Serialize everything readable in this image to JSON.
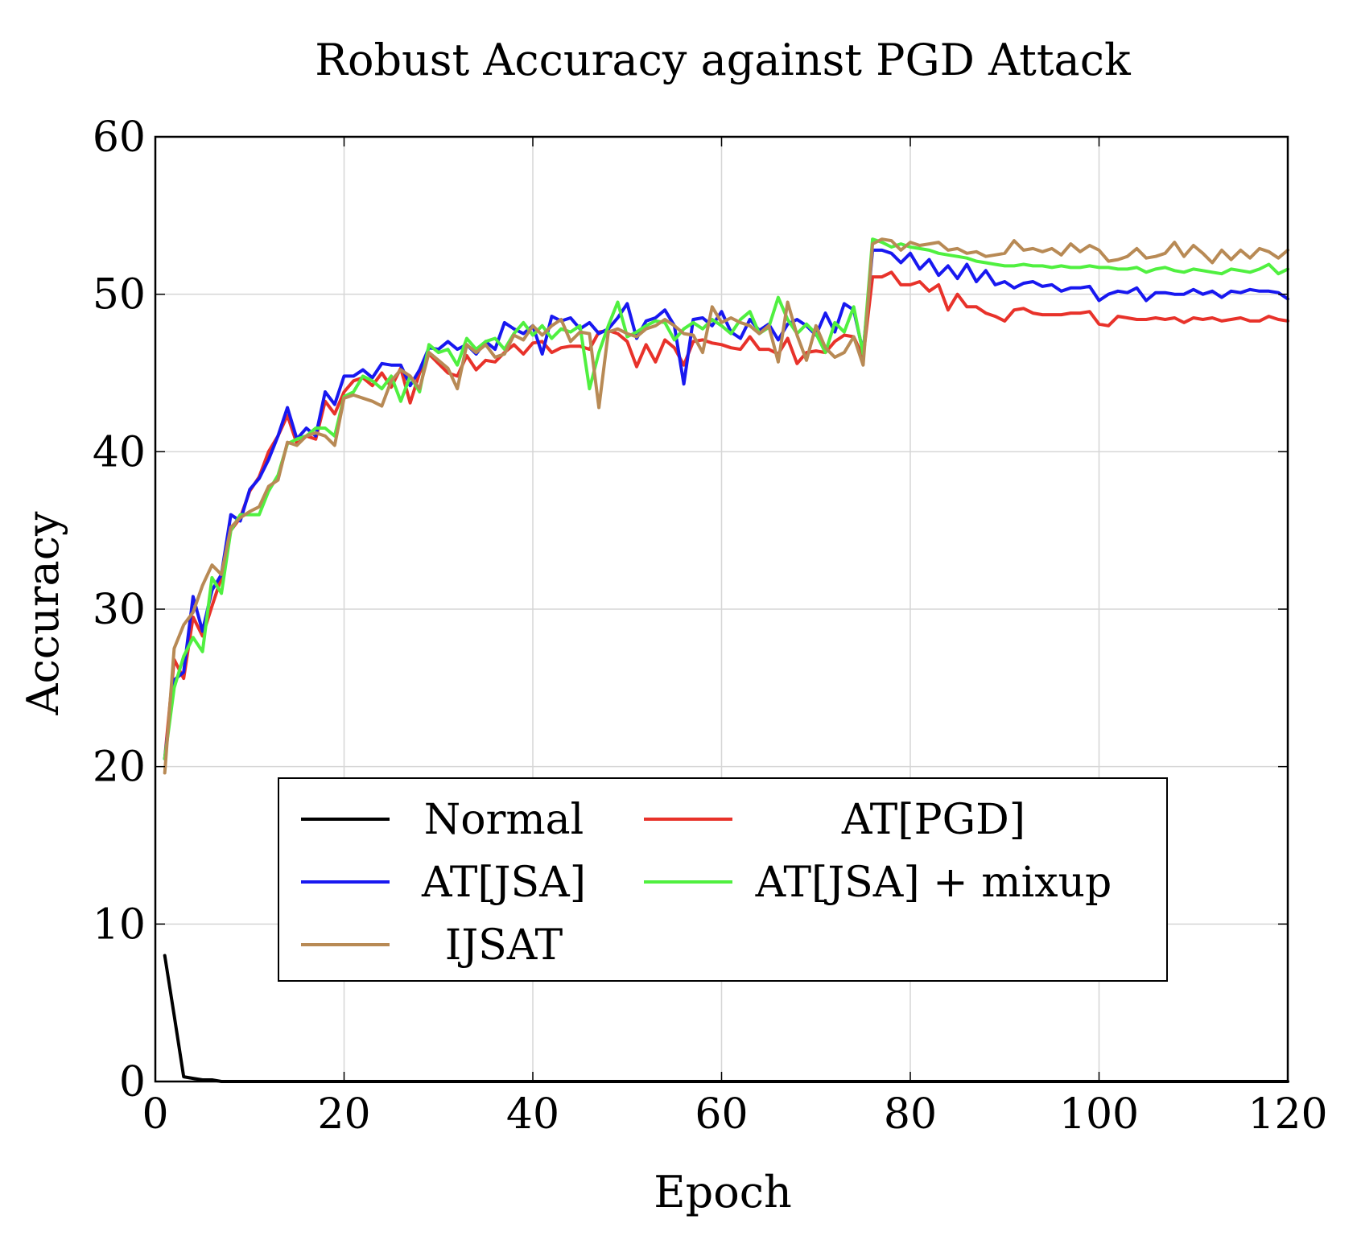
{
  "chart_data": {
    "type": "line",
    "title": "Robust Accuracy against PGD Attack",
    "xlabel": "Epoch",
    "ylabel": "Accuracy",
    "xlim": [
      0,
      120
    ],
    "ylim": [
      0,
      60
    ],
    "xticks": [
      0,
      20,
      40,
      60,
      80,
      100,
      120
    ],
    "yticks": [
      0,
      10,
      20,
      30,
      40,
      50,
      60
    ],
    "grid": true,
    "legend_position": "lower-center",
    "series": [
      {
        "name": "Normal",
        "color": "#000000",
        "x": [
          1,
          2,
          3,
          4,
          5,
          6,
          7,
          8,
          10,
          20,
          40,
          60,
          80,
          100,
          120
        ],
        "y": [
          8.0,
          4.2,
          0.3,
          0.2,
          0.1,
          0.1,
          0.0,
          0.0,
          0.0,
          0.0,
          0.0,
          0.0,
          0.0,
          0.0,
          0.0
        ]
      },
      {
        "name": "AT[PGD]",
        "color": "#e8322a",
        "x": [
          1,
          2,
          3,
          4,
          5,
          6,
          7,
          8,
          9,
          10,
          11,
          12,
          13,
          14,
          15,
          16,
          17,
          18,
          19,
          20,
          21,
          22,
          23,
          24,
          25,
          26,
          27,
          28,
          29,
          30,
          31,
          32,
          33,
          34,
          35,
          36,
          37,
          38,
          39,
          40,
          41,
          42,
          43,
          44,
          45,
          46,
          47,
          48,
          49,
          50,
          51,
          52,
          53,
          54,
          55,
          56,
          57,
          58,
          59,
          60,
          61,
          62,
          63,
          64,
          65,
          66,
          67,
          68,
          69,
          70,
          71,
          72,
          73,
          74,
          75,
          76,
          77,
          78,
          79,
          80,
          81,
          82,
          83,
          84,
          85,
          86,
          87,
          88,
          89,
          90,
          91,
          92,
          93,
          94,
          95,
          96,
          97,
          98,
          99,
          100,
          101,
          102,
          103,
          104,
          105,
          106,
          107,
          108,
          109,
          110,
          111,
          112,
          113,
          114,
          115,
          116,
          117,
          118,
          119,
          120
        ],
        "y": [
          20.5,
          26.8,
          25.6,
          29.5,
          28.3,
          30.2,
          32.0,
          35.0,
          35.8,
          37.5,
          38.4,
          40.0,
          41.0,
          42.3,
          40.5,
          41.0,
          40.8,
          43.2,
          42.4,
          43.8,
          44.5,
          44.7,
          44.2,
          45.0,
          44.1,
          45.3,
          43.1,
          45.0,
          46.2,
          45.6,
          45.0,
          44.8,
          46.1,
          45.2,
          45.8,
          45.7,
          46.3,
          46.8,
          46.2,
          46.9,
          47.0,
          46.3,
          46.6,
          46.7,
          46.7,
          46.5,
          47.6,
          47.7,
          47.5,
          47.0,
          45.4,
          46.8,
          45.7,
          47.1,
          46.6,
          45.5,
          47.0,
          47.1,
          46.9,
          46.8,
          46.6,
          46.5,
          47.3,
          46.5,
          46.5,
          46.2,
          47.2,
          45.6,
          46.3,
          46.4,
          46.3,
          47.0,
          47.4,
          47.3,
          46.0,
          51.1,
          51.1,
          51.4,
          50.6,
          50.6,
          50.8,
          50.2,
          50.6,
          49.0,
          50.0,
          49.2,
          49.2,
          48.8,
          48.6,
          48.3,
          49.0,
          49.1,
          48.8,
          48.7,
          48.7,
          48.7,
          48.8,
          48.8,
          48.9,
          48.1,
          48.0,
          48.6,
          48.5,
          48.4,
          48.4,
          48.5,
          48.4,
          48.5,
          48.2,
          48.5,
          48.4,
          48.5,
          48.3,
          48.4,
          48.5,
          48.3,
          48.3,
          48.6,
          48.4,
          48.3
        ]
      },
      {
        "name": "AT[JSA]",
        "color": "#1818f0",
        "x": [
          1,
          2,
          3,
          4,
          5,
          6,
          7,
          8,
          9,
          10,
          11,
          12,
          13,
          14,
          15,
          16,
          17,
          18,
          19,
          20,
          21,
          22,
          23,
          24,
          25,
          26,
          27,
          28,
          29,
          30,
          31,
          32,
          33,
          34,
          35,
          36,
          37,
          38,
          39,
          40,
          41,
          42,
          43,
          44,
          45,
          46,
          47,
          48,
          49,
          50,
          51,
          52,
          53,
          54,
          55,
          56,
          57,
          58,
          59,
          60,
          61,
          62,
          63,
          64,
          65,
          66,
          67,
          68,
          69,
          70,
          71,
          72,
          73,
          74,
          75,
          76,
          77,
          78,
          79,
          80,
          81,
          82,
          83,
          84,
          85,
          86,
          87,
          88,
          89,
          90,
          91,
          92,
          93,
          94,
          95,
          96,
          97,
          98,
          99,
          100,
          101,
          102,
          103,
          104,
          105,
          106,
          107,
          108,
          109,
          110,
          111,
          112,
          113,
          114,
          115,
          116,
          117,
          118,
          119,
          120
        ],
        "y": [
          20.5,
          25.5,
          26.0,
          30.8,
          28.6,
          31.2,
          32.2,
          36.0,
          35.6,
          37.6,
          38.3,
          39.5,
          41.0,
          42.8,
          40.8,
          41.5,
          41.0,
          43.8,
          43.0,
          44.8,
          44.8,
          45.2,
          44.7,
          45.6,
          45.5,
          45.5,
          44.2,
          45.2,
          46.6,
          46.5,
          47.0,
          46.5,
          46.8,
          46.2,
          47.0,
          46.5,
          48.2,
          47.8,
          47.5,
          48.0,
          46.2,
          48.6,
          48.3,
          48.5,
          47.8,
          48.2,
          47.5,
          47.8,
          48.5,
          49.4,
          47.2,
          48.3,
          48.5,
          49.0,
          48.0,
          44.3,
          48.4,
          48.5,
          48.0,
          48.9,
          47.6,
          47.2,
          48.4,
          47.7,
          48.1,
          47.1,
          48.1,
          48.4,
          48.0,
          47.4,
          48.8,
          47.6,
          49.4,
          49.0,
          46.3,
          52.8,
          52.8,
          52.6,
          52.0,
          52.6,
          51.6,
          52.2,
          51.2,
          51.8,
          51.0,
          51.9,
          50.8,
          51.5,
          50.6,
          50.8,
          50.4,
          50.7,
          50.8,
          50.5,
          50.6,
          50.2,
          50.4,
          50.4,
          50.5,
          49.6,
          50.0,
          50.2,
          50.1,
          50.4,
          49.6,
          50.1,
          50.1,
          50.0,
          50.0,
          50.3,
          50.0,
          50.2,
          49.8,
          50.2,
          50.1,
          50.3,
          50.2,
          50.2,
          50.1,
          49.7
        ]
      },
      {
        "name": "AT[JSA] + mixup",
        "color": "#50f040",
        "x": [
          1,
          2,
          3,
          4,
          5,
          6,
          7,
          8,
          9,
          10,
          11,
          12,
          13,
          14,
          15,
          16,
          17,
          18,
          19,
          20,
          21,
          22,
          23,
          24,
          25,
          26,
          27,
          28,
          29,
          30,
          31,
          32,
          33,
          34,
          35,
          36,
          37,
          38,
          39,
          40,
          41,
          42,
          43,
          44,
          45,
          46,
          47,
          48,
          49,
          50,
          51,
          52,
          53,
          54,
          55,
          56,
          57,
          58,
          59,
          60,
          61,
          62,
          63,
          64,
          65,
          66,
          67,
          68,
          69,
          70,
          71,
          72,
          73,
          74,
          75,
          76,
          77,
          78,
          79,
          80,
          81,
          82,
          83,
          84,
          85,
          86,
          87,
          88,
          89,
          90,
          91,
          92,
          93,
          94,
          95,
          96,
          97,
          98,
          99,
          100,
          101,
          102,
          103,
          104,
          105,
          106,
          107,
          108,
          109,
          110,
          111,
          112,
          113,
          114,
          115,
          116,
          117,
          118,
          119,
          120
        ],
        "y": [
          20.5,
          25.0,
          27.0,
          28.2,
          27.3,
          32.0,
          31.0,
          35.0,
          36.0,
          36.0,
          36.0,
          37.5,
          38.5,
          40.5,
          40.8,
          41.0,
          41.5,
          41.5,
          41.0,
          43.5,
          43.8,
          44.8,
          44.5,
          44.0,
          44.8,
          43.2,
          44.8,
          43.8,
          46.8,
          46.3,
          46.5,
          45.5,
          47.2,
          46.5,
          47.0,
          47.2,
          46.5,
          47.5,
          48.2,
          47.4,
          48.0,
          47.2,
          47.8,
          47.6,
          48.0,
          44.0,
          46.3,
          48.0,
          49.5,
          47.3,
          47.6,
          48.0,
          48.3,
          48.2,
          47.1,
          47.8,
          48.2,
          47.8,
          48.4,
          48.0,
          47.5,
          48.4,
          48.9,
          47.5,
          47.9,
          49.8,
          48.4,
          47.5,
          48.1,
          47.5,
          46.3,
          48.2,
          47.6,
          49.2,
          46.2,
          53.5,
          53.3,
          53.0,
          53.2,
          53.0,
          52.9,
          52.8,
          52.6,
          52.5,
          52.4,
          52.3,
          52.1,
          52.0,
          51.9,
          51.8,
          51.8,
          51.9,
          51.8,
          51.8,
          51.7,
          51.8,
          51.7,
          51.7,
          51.8,
          51.7,
          51.7,
          51.6,
          51.6,
          51.7,
          51.4,
          51.6,
          51.7,
          51.5,
          51.4,
          51.6,
          51.5,
          51.4,
          51.3,
          51.6,
          51.5,
          51.4,
          51.6,
          51.9,
          51.3,
          51.6
        ]
      },
      {
        "name": "IJSAT",
        "color": "#b88a55",
        "x": [
          1,
          2,
          3,
          4,
          5,
          6,
          7,
          8,
          9,
          10,
          11,
          12,
          13,
          14,
          15,
          16,
          17,
          18,
          19,
          20,
          21,
          22,
          23,
          24,
          25,
          26,
          27,
          28,
          29,
          30,
          31,
          32,
          33,
          34,
          35,
          36,
          37,
          38,
          39,
          40,
          41,
          42,
          43,
          44,
          45,
          46,
          47,
          48,
          49,
          50,
          51,
          52,
          53,
          54,
          55,
          56,
          57,
          58,
          59,
          60,
          61,
          62,
          63,
          64,
          65,
          66,
          67,
          68,
          69,
          70,
          71,
          72,
          73,
          74,
          75,
          76,
          77,
          78,
          79,
          80,
          81,
          82,
          83,
          84,
          85,
          86,
          87,
          88,
          89,
          90,
          91,
          92,
          93,
          94,
          95,
          96,
          97,
          98,
          99,
          100,
          101,
          102,
          103,
          104,
          105,
          106,
          107,
          108,
          109,
          110,
          111,
          112,
          113,
          114,
          115,
          116,
          117,
          118,
          119,
          120
        ],
        "y": [
          19.6,
          27.5,
          29.0,
          29.8,
          31.5,
          32.8,
          32.2,
          35.2,
          35.8,
          36.2,
          36.5,
          37.8,
          38.2,
          40.6,
          40.4,
          41.0,
          41.2,
          41.0,
          40.4,
          43.4,
          43.6,
          43.4,
          43.2,
          42.9,
          44.5,
          45.2,
          44.8,
          44.0,
          46.3,
          45.8,
          45.3,
          44.0,
          46.8,
          46.3,
          46.8,
          46.0,
          46.2,
          47.4,
          47.1,
          48.0,
          47.4,
          48.0,
          48.4,
          47.0,
          47.6,
          47.5,
          42.8,
          47.6,
          47.8,
          47.5,
          47.3,
          47.8,
          48.0,
          48.4,
          48.0,
          47.5,
          47.4,
          46.3,
          49.2,
          48.2,
          48.5,
          48.2,
          48.0,
          47.5,
          48.0,
          45.7,
          49.5,
          47.4,
          45.8,
          48.0,
          46.6,
          46.0,
          46.3,
          47.3,
          45.5,
          53.2,
          53.5,
          53.4,
          52.8,
          53.3,
          53.1,
          53.2,
          53.3,
          52.8,
          52.9,
          52.6,
          52.7,
          52.4,
          52.5,
          52.6,
          53.4,
          52.8,
          52.9,
          52.7,
          52.9,
          52.5,
          53.2,
          52.7,
          53.1,
          52.8,
          52.1,
          52.2,
          52.4,
          52.9,
          52.3,
          52.4,
          52.6,
          53.3,
          52.4,
          53.1,
          52.6,
          52.0,
          52.8,
          52.2,
          52.8,
          52.3,
          52.9,
          52.7,
          52.3,
          52.8
        ]
      }
    ]
  }
}
